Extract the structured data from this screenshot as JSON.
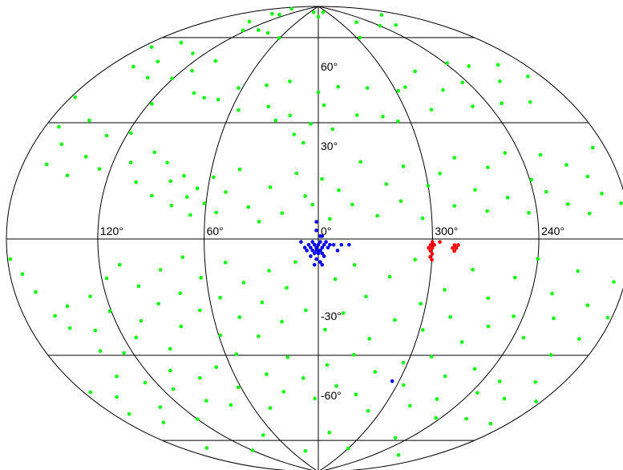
{
  "chart_data": {
    "type": "scatter",
    "projection": "Aitoff/Hammer all-sky (galactic coordinates)",
    "title": "",
    "xlabel": "",
    "ylabel": "",
    "longitude_ticks": [
      {
        "value": 120,
        "label": "120°"
      },
      {
        "value": 60,
        "label": "60°"
      },
      {
        "value": 0,
        "label": "0°"
      },
      {
        "value": 300,
        "label": "300°"
      },
      {
        "value": 240,
        "label": "240°"
      }
    ],
    "latitude_ticks": [
      {
        "value": 60,
        "label": "60°"
      },
      {
        "value": 30,
        "label": "30°"
      },
      {
        "value": -30,
        "label": "-30°"
      },
      {
        "value": -60,
        "label": "-60°"
      }
    ],
    "meridians": [
      -120,
      -60,
      0,
      60,
      120
    ],
    "parallels": [
      -60,
      -30,
      0,
      30,
      60
    ],
    "grid": true,
    "series": [
      {
        "color": "#00ff00",
        "points": [
          [
            164,
            85
          ],
          [
            150,
            81
          ],
          [
            143,
            76
          ],
          [
            134,
            82
          ],
          [
            124,
            73
          ],
          [
            106,
            75
          ],
          [
            86,
            75
          ],
          [
            61,
            74
          ],
          [
            34,
            87
          ],
          [
            0,
            85
          ],
          [
            -34,
            87
          ],
          [
            -65,
            74
          ],
          [
            -96,
            80
          ],
          [
            -120,
            76
          ],
          [
            -141,
            74
          ],
          [
            -163,
            78
          ],
          [
            173,
            57
          ],
          [
            162,
            51
          ],
          [
            157,
            62
          ],
          [
            149,
            55
          ],
          [
            140,
            50
          ],
          [
            131,
            61
          ],
          [
            121,
            52
          ],
          [
            118,
            43
          ],
          [
            112,
            56
          ],
          [
            102,
            61
          ],
          [
            94,
            49
          ],
          [
            84,
            48
          ],
          [
            73,
            48
          ],
          [
            63,
            53
          ],
          [
            55,
            45
          ],
          [
            42,
            55
          ],
          [
            35,
            47
          ],
          [
            28,
            42
          ],
          [
            24,
            57
          ],
          [
            19,
            44
          ],
          [
            15,
            37
          ],
          [
            9,
            34
          ],
          [
            5,
            41
          ],
          [
            0,
            53
          ],
          [
            -4,
            48
          ],
          [
            -9,
            39
          ],
          [
            -16,
            55
          ],
          [
            -26,
            44
          ],
          [
            -39,
            54
          ],
          [
            -43,
            43
          ],
          [
            -52,
            41
          ],
          [
            -62,
            52
          ],
          [
            -69,
            53
          ],
          [
            -78,
            44
          ],
          [
            -87,
            58
          ],
          [
            -96,
            50
          ],
          [
            -108,
            43
          ],
          [
            -116,
            51
          ],
          [
            -122,
            58
          ],
          [
            -130,
            42
          ],
          [
            -136,
            55
          ],
          [
            -145,
            48
          ],
          [
            -151,
            40
          ],
          [
            -160,
            52
          ],
          [
            -170,
            46
          ],
          [
            177,
            38
          ],
          [
            170,
            30
          ],
          [
            163,
            20
          ],
          [
            160,
            26
          ],
          [
            152,
            34
          ],
          [
            146,
            18
          ],
          [
            139,
            24
          ],
          [
            133,
            31
          ],
          [
            127,
            21
          ],
          [
            118,
            33
          ],
          [
            109,
            24
          ],
          [
            102,
            18
          ],
          [
            97,
            28
          ],
          [
            91,
            14
          ],
          [
            87,
            25
          ],
          [
            82,
            19
          ],
          [
            79,
            11
          ],
          [
            75,
            21
          ],
          [
            71,
            14
          ],
          [
            68,
            8
          ],
          [
            66,
            17
          ],
          [
            61,
            12
          ],
          [
            58,
            21
          ],
          [
            54,
            9
          ],
          [
            50,
            16
          ],
          [
            44,
            24
          ],
          [
            37,
            11
          ],
          [
            31,
            6
          ],
          [
            26,
            18
          ],
          [
            19,
            9
          ],
          [
            12,
            23
          ],
          [
            7,
            15
          ],
          [
            3,
            12
          ],
          [
            -2,
            21
          ],
          [
            -6,
            7
          ],
          [
            -11,
            17
          ],
          [
            -18,
            12
          ],
          [
            -24,
            27
          ],
          [
            -31,
            8
          ],
          [
            -37,
            19
          ],
          [
            -44,
            13
          ],
          [
            -48,
            25
          ],
          [
            -55,
            7
          ],
          [
            -60,
            18
          ],
          [
            -68,
            22
          ],
          [
            -73,
            11
          ],
          [
            -79,
            27
          ],
          [
            -86,
            16
          ],
          [
            -91,
            9
          ],
          [
            -97,
            23
          ],
          [
            -104,
            13
          ],
          [
            -111,
            27
          ],
          [
            -115,
            8
          ],
          [
            -121,
            18
          ],
          [
            -128,
            14
          ],
          [
            -133,
            25
          ],
          [
            -140,
            10
          ],
          [
            -147,
            21
          ],
          [
            -153,
            7
          ],
          [
            -158,
            17
          ],
          [
            -164,
            12
          ],
          [
            -171,
            24
          ],
          [
            -176,
            9
          ],
          [
            178,
            -5
          ],
          [
            171,
            -9
          ],
          [
            165,
            -14
          ],
          [
            158,
            -21
          ],
          [
            152,
            -25
          ],
          [
            147,
            -19
          ],
          [
            141,
            -33
          ],
          [
            136,
            -27
          ],
          [
            130,
            -17
          ],
          [
            126,
            -35
          ],
          [
            121,
            -22
          ],
          [
            117,
            -12
          ],
          [
            112,
            -31
          ],
          [
            108,
            -8
          ],
          [
            104,
            -26
          ],
          [
            99,
            -15
          ],
          [
            94,
            -36
          ],
          [
            90,
            -21
          ],
          [
            85,
            -10
          ],
          [
            81,
            -29
          ],
          [
            76,
            -18
          ],
          [
            72,
            -6
          ],
          [
            67,
            -24
          ],
          [
            63,
            -13
          ],
          [
            59,
            -33
          ],
          [
            54,
            -20
          ],
          [
            49,
            -8
          ],
          [
            45,
            -27
          ],
          [
            40,
            -15
          ],
          [
            36,
            -34
          ],
          [
            31,
            -22
          ],
          [
            26,
            -11
          ],
          [
            21,
            -29
          ],
          [
            17,
            -17
          ],
          [
            12,
            -8
          ],
          [
            7,
            -25
          ],
          [
            -4,
            -32
          ],
          [
            -9,
            -14
          ],
          [
            -14,
            -26
          ],
          [
            -19,
            -9
          ],
          [
            -26,
            -20
          ],
          [
            -31,
            -35
          ],
          [
            -38,
            -13
          ],
          [
            -44,
            -28
          ],
          [
            -51,
            -7
          ],
          [
            -57,
            -22
          ],
          [
            -62,
            -31
          ],
          [
            -69,
            -17
          ],
          [
            -76,
            -26
          ],
          [
            -83,
            -10
          ],
          [
            -89,
            -34
          ],
          [
            -95,
            -19
          ],
          [
            -101,
            -28
          ],
          [
            -108,
            -12
          ],
          [
            -114,
            -24
          ],
          [
            -120,
            -6
          ],
          [
            -127,
            -30
          ],
          [
            -133,
            -16
          ],
          [
            -140,
            -23
          ],
          [
            -146,
            -9
          ],
          [
            -153,
            -33
          ],
          [
            -159,
            -18
          ],
          [
            -165,
            -27
          ],
          [
            -172,
            -11
          ],
          [
            -177,
            -20
          ],
          [
            175,
            -42
          ],
          [
            168,
            -51
          ],
          [
            160,
            -46
          ],
          [
            152,
            -57
          ],
          [
            144,
            -41
          ],
          [
            137,
            -53
          ],
          [
            128,
            -45
          ],
          [
            120,
            -60
          ],
          [
            112,
            -49
          ],
          [
            103,
            -43
          ],
          [
            95,
            -55
          ],
          [
            86,
            -47
          ],
          [
            78,
            -58
          ],
          [
            70,
            -44
          ],
          [
            62,
            -52
          ],
          [
            53,
            -40
          ],
          [
            45,
            -61
          ],
          [
            37,
            -48
          ],
          [
            28,
            -55
          ],
          [
            20,
            -42
          ],
          [
            11,
            -50
          ],
          [
            3,
            -58
          ],
          [
            -6,
            -45
          ],
          [
            -14,
            -53
          ],
          [
            -23,
            -41
          ],
          [
            -31,
            -56
          ],
          [
            -40,
            -47
          ],
          [
            -48,
            -62
          ],
          [
            -57,
            -43
          ],
          [
            -65,
            -51
          ],
          [
            -74,
            -40
          ],
          [
            -82,
            -58
          ],
          [
            -91,
            -46
          ],
          [
            -99,
            -54
          ],
          [
            -108,
            -42
          ],
          [
            -116,
            -60
          ],
          [
            -125,
            -49
          ],
          [
            -133,
            -44
          ],
          [
            -142,
            -57
          ],
          [
            -150,
            -48
          ],
          [
            -159,
            -41
          ],
          [
            -167,
            -55
          ],
          [
            -176,
            -45
          ],
          [
            160,
            -68
          ],
          [
            120,
            -75
          ],
          [
            75,
            -71
          ],
          [
            30,
            -80
          ],
          [
            -15,
            -72
          ],
          [
            -60,
            -78
          ],
          [
            -105,
            -70
          ],
          [
            -150,
            -74
          ]
        ]
      },
      {
        "color": "#0000ff",
        "points": [
          [
            5,
            -2
          ],
          [
            4,
            -3
          ],
          [
            3,
            -1
          ],
          [
            2,
            -2
          ],
          [
            1,
            -3
          ],
          [
            0,
            -2
          ],
          [
            -1,
            -1
          ],
          [
            -2,
            -3
          ],
          [
            -3,
            -2
          ],
          [
            -4,
            -1
          ],
          [
            3,
            -4
          ],
          [
            1,
            -4
          ],
          [
            -1,
            -4
          ],
          [
            -2,
            -5
          ],
          [
            0,
            -5
          ],
          [
            2,
            -5
          ],
          [
            6,
            -4
          ],
          [
            -5,
            -3
          ],
          [
            -6,
            -2
          ],
          [
            7,
            -3
          ],
          [
            4,
            -6
          ],
          [
            -3,
            -6
          ],
          [
            1,
            -7
          ],
          [
            -1,
            -8
          ],
          [
            2,
            -9
          ],
          [
            -2,
            -9
          ],
          [
            9,
            -1
          ],
          [
            -8,
            -2
          ],
          [
            -10,
            -4
          ],
          [
            -12,
            -2
          ],
          [
            -16,
            -2
          ],
          [
            1,
            3
          ],
          [
            -1,
            1
          ],
          [
            -2,
            1
          ],
          [
            1,
            6
          ],
          [
            -55,
            -50
          ]
        ]
      },
      {
        "color": "#ff0000",
        "points": [
          [
            -72,
            -2
          ],
          [
            -73,
            -3
          ],
          [
            -71,
            -3
          ],
          [
            -74,
            -2
          ],
          [
            -72,
            -4
          ],
          [
            -60,
            -1
          ],
          [
            -59,
            -2
          ],
          [
            -60,
            -3
          ],
          [
            -59,
            -4
          ],
          [
            -60,
            -5
          ],
          [
            -59,
            -6
          ],
          [
            -60,
            -7
          ],
          [
            -58,
            -3
          ],
          [
            -61,
            -2
          ],
          [
            -64,
            -1
          ]
        ]
      }
    ]
  }
}
